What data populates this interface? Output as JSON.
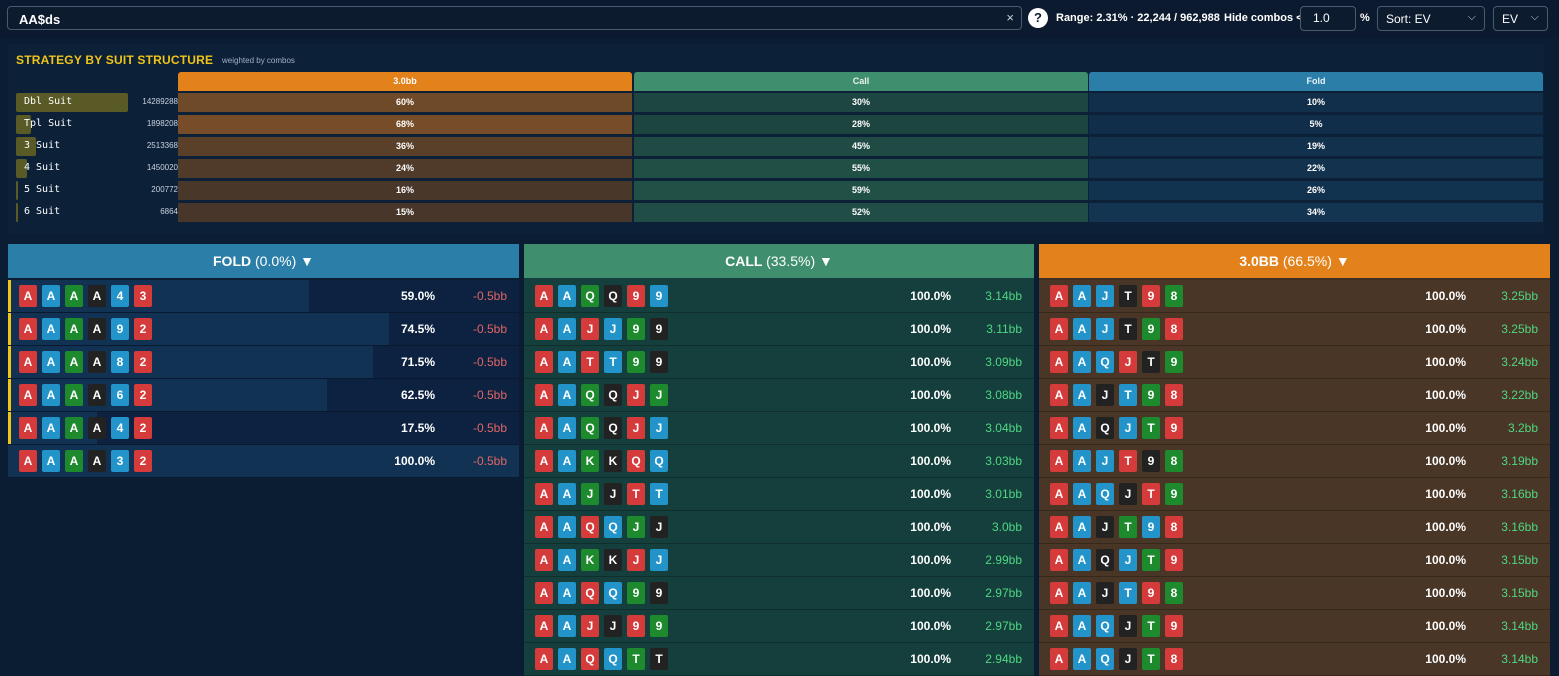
{
  "search": {
    "value": "AA$ds",
    "clear_icon": "×"
  },
  "help_icon": "?",
  "range_text": "Range: 2.31% · 22,244 / 962,988",
  "hide_label": "Hide combos <",
  "hide_value": "1.0",
  "pct_label": "%",
  "sort_label": "Sort: EV",
  "ev_label": "EV",
  "chevron": "⌵",
  "colors": {
    "suit_red": "#d63b3b",
    "suit_blue": "#2394c9",
    "suit_green": "#1e8a2e",
    "suit_black": "#222222",
    "raise": "#e3821a",
    "call": "#3f8f6f",
    "fold": "#2b7ea8",
    "ev_neg": "#e06666",
    "ev_pos": "#4fd882"
  },
  "strategy": {
    "title": "STRATEGY BY SUIT STRUCTURE",
    "subtitle": "weighted by combos",
    "headers": [
      "3.0bb",
      "Call",
      "Fold"
    ],
    "rows": [
      {
        "name": "Dbl Suit",
        "count": "14289288",
        "weight": 1.0,
        "values": [
          "60%",
          "30%",
          "10%"
        ],
        "nums": [
          60,
          30,
          10
        ]
      },
      {
        "name": "Tpl Suit",
        "count": "1898208",
        "weight": 0.13,
        "values": [
          "68%",
          "28%",
          "5%"
        ],
        "nums": [
          68,
          28,
          5
        ]
      },
      {
        "name": "3 Suit",
        "count": "2513368",
        "weight": 0.18,
        "values": [
          "36%",
          "45%",
          "19%"
        ],
        "nums": [
          36,
          45,
          19
        ]
      },
      {
        "name": "4 Suit",
        "count": "1450020",
        "weight": 0.1,
        "values": [
          "24%",
          "55%",
          "22%"
        ],
        "nums": [
          24,
          55,
          22
        ]
      },
      {
        "name": "5 Suit",
        "count": "200772",
        "weight": 0.014,
        "values": [
          "16%",
          "59%",
          "26%"
        ],
        "nums": [
          16,
          59,
          26
        ]
      },
      {
        "name": "6 Suit",
        "count": "6864",
        "weight": 0.0005,
        "values": [
          "15%",
          "52%",
          "34%"
        ],
        "nums": [
          15,
          52,
          34
        ]
      }
    ]
  },
  "columns": [
    {
      "title": "FOLD",
      "pct": "(0.0%)",
      "arrow": "▼",
      "kind": "fold",
      "hands": [
        {
          "cards": [
            [
              "A",
              "r"
            ],
            [
              "A",
              "b"
            ],
            [
              "A",
              "g"
            ],
            [
              "A",
              "k"
            ],
            [
              "4",
              "b"
            ],
            [
              "3",
              "r"
            ]
          ],
          "freq": "59.0%",
          "fnum": 0.59,
          "ev": "-0.5bb",
          "marked": true
        },
        {
          "cards": [
            [
              "A",
              "r"
            ],
            [
              "A",
              "b"
            ],
            [
              "A",
              "g"
            ],
            [
              "A",
              "k"
            ],
            [
              "9",
              "b"
            ],
            [
              "2",
              "r"
            ]
          ],
          "freq": "74.5%",
          "fnum": 0.745,
          "ev": "-0.5bb",
          "marked": true
        },
        {
          "cards": [
            [
              "A",
              "r"
            ],
            [
              "A",
              "b"
            ],
            [
              "A",
              "g"
            ],
            [
              "A",
              "k"
            ],
            [
              "8",
              "b"
            ],
            [
              "2",
              "r"
            ]
          ],
          "freq": "71.5%",
          "fnum": 0.715,
          "ev": "-0.5bb",
          "marked": true
        },
        {
          "cards": [
            [
              "A",
              "r"
            ],
            [
              "A",
              "b"
            ],
            [
              "A",
              "g"
            ],
            [
              "A",
              "k"
            ],
            [
              "6",
              "b"
            ],
            [
              "2",
              "r"
            ]
          ],
          "freq": "62.5%",
          "fnum": 0.625,
          "ev": "-0.5bb",
          "marked": true
        },
        {
          "cards": [
            [
              "A",
              "r"
            ],
            [
              "A",
              "b"
            ],
            [
              "A",
              "g"
            ],
            [
              "A",
              "k"
            ],
            [
              "4",
              "b"
            ],
            [
              "2",
              "r"
            ]
          ],
          "freq": "17.5%",
          "fnum": 0.175,
          "ev": "-0.5bb",
          "marked": true
        },
        {
          "cards": [
            [
              "A",
              "r"
            ],
            [
              "A",
              "b"
            ],
            [
              "A",
              "g"
            ],
            [
              "A",
              "k"
            ],
            [
              "3",
              "b"
            ],
            [
              "2",
              "r"
            ]
          ],
          "freq": "100.0%",
          "fnum": 1.0,
          "ev": "-0.5bb",
          "marked": false
        }
      ]
    },
    {
      "title": "CALL",
      "pct": "(33.5%)",
      "arrow": "▼",
      "kind": "call",
      "hands": [
        {
          "cards": [
            [
              "A",
              "r"
            ],
            [
              "A",
              "b"
            ],
            [
              "Q",
              "g"
            ],
            [
              "Q",
              "k"
            ],
            [
              "9",
              "r"
            ],
            [
              "9",
              "b"
            ]
          ],
          "freq": "100.0%",
          "fnum": 1.0,
          "ev": "3.14bb"
        },
        {
          "cards": [
            [
              "A",
              "r"
            ],
            [
              "A",
              "b"
            ],
            [
              "J",
              "r"
            ],
            [
              "J",
              "b"
            ],
            [
              "9",
              "g"
            ],
            [
              "9",
              "k"
            ]
          ],
          "freq": "100.0%",
          "fnum": 1.0,
          "ev": "3.11bb"
        },
        {
          "cards": [
            [
              "A",
              "r"
            ],
            [
              "A",
              "b"
            ],
            [
              "T",
              "r"
            ],
            [
              "T",
              "b"
            ],
            [
              "9",
              "g"
            ],
            [
              "9",
              "k"
            ]
          ],
          "freq": "100.0%",
          "fnum": 1.0,
          "ev": "3.09bb"
        },
        {
          "cards": [
            [
              "A",
              "r"
            ],
            [
              "A",
              "b"
            ],
            [
              "Q",
              "g"
            ],
            [
              "Q",
              "k"
            ],
            [
              "J",
              "r"
            ],
            [
              "J",
              "g"
            ]
          ],
          "freq": "100.0%",
          "fnum": 1.0,
          "ev": "3.08bb"
        },
        {
          "cards": [
            [
              "A",
              "r"
            ],
            [
              "A",
              "b"
            ],
            [
              "Q",
              "g"
            ],
            [
              "Q",
              "k"
            ],
            [
              "J",
              "r"
            ],
            [
              "J",
              "b"
            ]
          ],
          "freq": "100.0%",
          "fnum": 1.0,
          "ev": "3.04bb"
        },
        {
          "cards": [
            [
              "A",
              "r"
            ],
            [
              "A",
              "b"
            ],
            [
              "K",
              "g"
            ],
            [
              "K",
              "k"
            ],
            [
              "Q",
              "r"
            ],
            [
              "Q",
              "b"
            ]
          ],
          "freq": "100.0%",
          "fnum": 1.0,
          "ev": "3.03bb"
        },
        {
          "cards": [
            [
              "A",
              "r"
            ],
            [
              "A",
              "b"
            ],
            [
              "J",
              "g"
            ],
            [
              "J",
              "k"
            ],
            [
              "T",
              "r"
            ],
            [
              "T",
              "b"
            ]
          ],
          "freq": "100.0%",
          "fnum": 1.0,
          "ev": "3.01bb"
        },
        {
          "cards": [
            [
              "A",
              "r"
            ],
            [
              "A",
              "b"
            ],
            [
              "Q",
              "r"
            ],
            [
              "Q",
              "b"
            ],
            [
              "J",
              "g"
            ],
            [
              "J",
              "k"
            ]
          ],
          "freq": "100.0%",
          "fnum": 1.0,
          "ev": "3.0bb"
        },
        {
          "cards": [
            [
              "A",
              "r"
            ],
            [
              "A",
              "b"
            ],
            [
              "K",
              "g"
            ],
            [
              "K",
              "k"
            ],
            [
              "J",
              "r"
            ],
            [
              "J",
              "b"
            ]
          ],
          "freq": "100.0%",
          "fnum": 1.0,
          "ev": "2.99bb"
        },
        {
          "cards": [
            [
              "A",
              "r"
            ],
            [
              "A",
              "b"
            ],
            [
              "Q",
              "r"
            ],
            [
              "Q",
              "b"
            ],
            [
              "9",
              "g"
            ],
            [
              "9",
              "k"
            ]
          ],
          "freq": "100.0%",
          "fnum": 1.0,
          "ev": "2.97bb"
        },
        {
          "cards": [
            [
              "A",
              "r"
            ],
            [
              "A",
              "b"
            ],
            [
              "J",
              "r"
            ],
            [
              "J",
              "k"
            ],
            [
              "9",
              "r"
            ],
            [
              "9",
              "g"
            ]
          ],
          "freq": "100.0%",
          "fnum": 1.0,
          "ev": "2.97bb"
        },
        {
          "cards": [
            [
              "A",
              "r"
            ],
            [
              "A",
              "b"
            ],
            [
              "Q",
              "r"
            ],
            [
              "Q",
              "b"
            ],
            [
              "T",
              "g"
            ],
            [
              "T",
              "k"
            ]
          ],
          "freq": "100.0%",
          "fnum": 1.0,
          "ev": "2.94bb"
        }
      ]
    },
    {
      "title": "3.0BB",
      "pct": "(66.5%)",
      "arrow": "▼",
      "kind": "raise",
      "hands": [
        {
          "cards": [
            [
              "A",
              "r"
            ],
            [
              "A",
              "b"
            ],
            [
              "J",
              "b"
            ],
            [
              "T",
              "k"
            ],
            [
              "9",
              "r"
            ],
            [
              "8",
              "g"
            ]
          ],
          "freq": "100.0%",
          "fnum": 1.0,
          "ev": "3.25bb"
        },
        {
          "cards": [
            [
              "A",
              "r"
            ],
            [
              "A",
              "b"
            ],
            [
              "J",
              "b"
            ],
            [
              "T",
              "k"
            ],
            [
              "9",
              "g"
            ],
            [
              "8",
              "r"
            ]
          ],
          "freq": "100.0%",
          "fnum": 1.0,
          "ev": "3.25bb"
        },
        {
          "cards": [
            [
              "A",
              "r"
            ],
            [
              "A",
              "b"
            ],
            [
              "Q",
              "b"
            ],
            [
              "J",
              "r"
            ],
            [
              "T",
              "k"
            ],
            [
              "9",
              "g"
            ]
          ],
          "freq": "100.0%",
          "fnum": 1.0,
          "ev": "3.24bb"
        },
        {
          "cards": [
            [
              "A",
              "r"
            ],
            [
              "A",
              "b"
            ],
            [
              "J",
              "k"
            ],
            [
              "T",
              "b"
            ],
            [
              "9",
              "g"
            ],
            [
              "8",
              "r"
            ]
          ],
          "freq": "100.0%",
          "fnum": 1.0,
          "ev": "3.22bb"
        },
        {
          "cards": [
            [
              "A",
              "r"
            ],
            [
              "A",
              "b"
            ],
            [
              "Q",
              "k"
            ],
            [
              "J",
              "b"
            ],
            [
              "T",
              "g"
            ],
            [
              "9",
              "r"
            ]
          ],
          "freq": "100.0%",
          "fnum": 1.0,
          "ev": "3.2bb"
        },
        {
          "cards": [
            [
              "A",
              "r"
            ],
            [
              "A",
              "b"
            ],
            [
              "J",
              "b"
            ],
            [
              "T",
              "r"
            ],
            [
              "9",
              "k"
            ],
            [
              "8",
              "g"
            ]
          ],
          "freq": "100.0%",
          "fnum": 1.0,
          "ev": "3.19bb"
        },
        {
          "cards": [
            [
              "A",
              "r"
            ],
            [
              "A",
              "b"
            ],
            [
              "Q",
              "b"
            ],
            [
              "J",
              "k"
            ],
            [
              "T",
              "r"
            ],
            [
              "9",
              "g"
            ]
          ],
          "freq": "100.0%",
          "fnum": 1.0,
          "ev": "3.16bb"
        },
        {
          "cards": [
            [
              "A",
              "r"
            ],
            [
              "A",
              "b"
            ],
            [
              "J",
              "k"
            ],
            [
              "T",
              "g"
            ],
            [
              "9",
              "b"
            ],
            [
              "8",
              "r"
            ]
          ],
          "freq": "100.0%",
          "fnum": 1.0,
          "ev": "3.16bb"
        },
        {
          "cards": [
            [
              "A",
              "r"
            ],
            [
              "A",
              "b"
            ],
            [
              "Q",
              "k"
            ],
            [
              "J",
              "b"
            ],
            [
              "T",
              "g"
            ],
            [
              "9",
              "r"
            ]
          ],
          "freq": "100.0%",
          "fnum": 1.0,
          "ev": "3.15bb"
        },
        {
          "cards": [
            [
              "A",
              "r"
            ],
            [
              "A",
              "b"
            ],
            [
              "J",
              "k"
            ],
            [
              "T",
              "b"
            ],
            [
              "9",
              "r"
            ],
            [
              "8",
              "g"
            ]
          ],
          "freq": "100.0%",
          "fnum": 1.0,
          "ev": "3.15bb"
        },
        {
          "cards": [
            [
              "A",
              "r"
            ],
            [
              "A",
              "b"
            ],
            [
              "Q",
              "b"
            ],
            [
              "J",
              "k"
            ],
            [
              "T",
              "g"
            ],
            [
              "9",
              "r"
            ]
          ],
          "freq": "100.0%",
          "fnum": 1.0,
          "ev": "3.14bb"
        },
        {
          "cards": [
            [
              "A",
              "r"
            ],
            [
              "A",
              "b"
            ],
            [
              "Q",
              "b"
            ],
            [
              "J",
              "k"
            ],
            [
              "T",
              "g"
            ],
            [
              "8",
              "r"
            ]
          ],
          "freq": "100.0%",
          "fnum": 1.0,
          "ev": "3.14bb"
        }
      ]
    }
  ]
}
